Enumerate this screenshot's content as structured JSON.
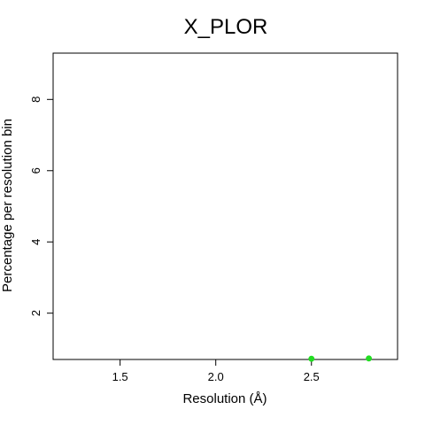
{
  "chart_data": {
    "type": "scatter",
    "title": "X_PLOR",
    "xlabel": "Resolution (Å)",
    "ylabel": "Percentage per resolution bin",
    "xlim": [
      1.15,
      2.95
    ],
    "ylim": [
      0.7,
      9.3
    ],
    "xticks": [
      1.5,
      2.0,
      2.5
    ],
    "xtick_labels": [
      "1.5",
      "2.0",
      "2.5"
    ],
    "yticks": [
      2,
      4,
      6,
      8
    ],
    "ytick_labels": [
      "2",
      "4",
      "6",
      "8"
    ],
    "points": [
      {
        "x": 2.5,
        "y": 0.72
      },
      {
        "x": 2.8,
        "y": 0.73
      }
    ],
    "point_color": "#22dd22",
    "grid": false,
    "legend": "none"
  }
}
